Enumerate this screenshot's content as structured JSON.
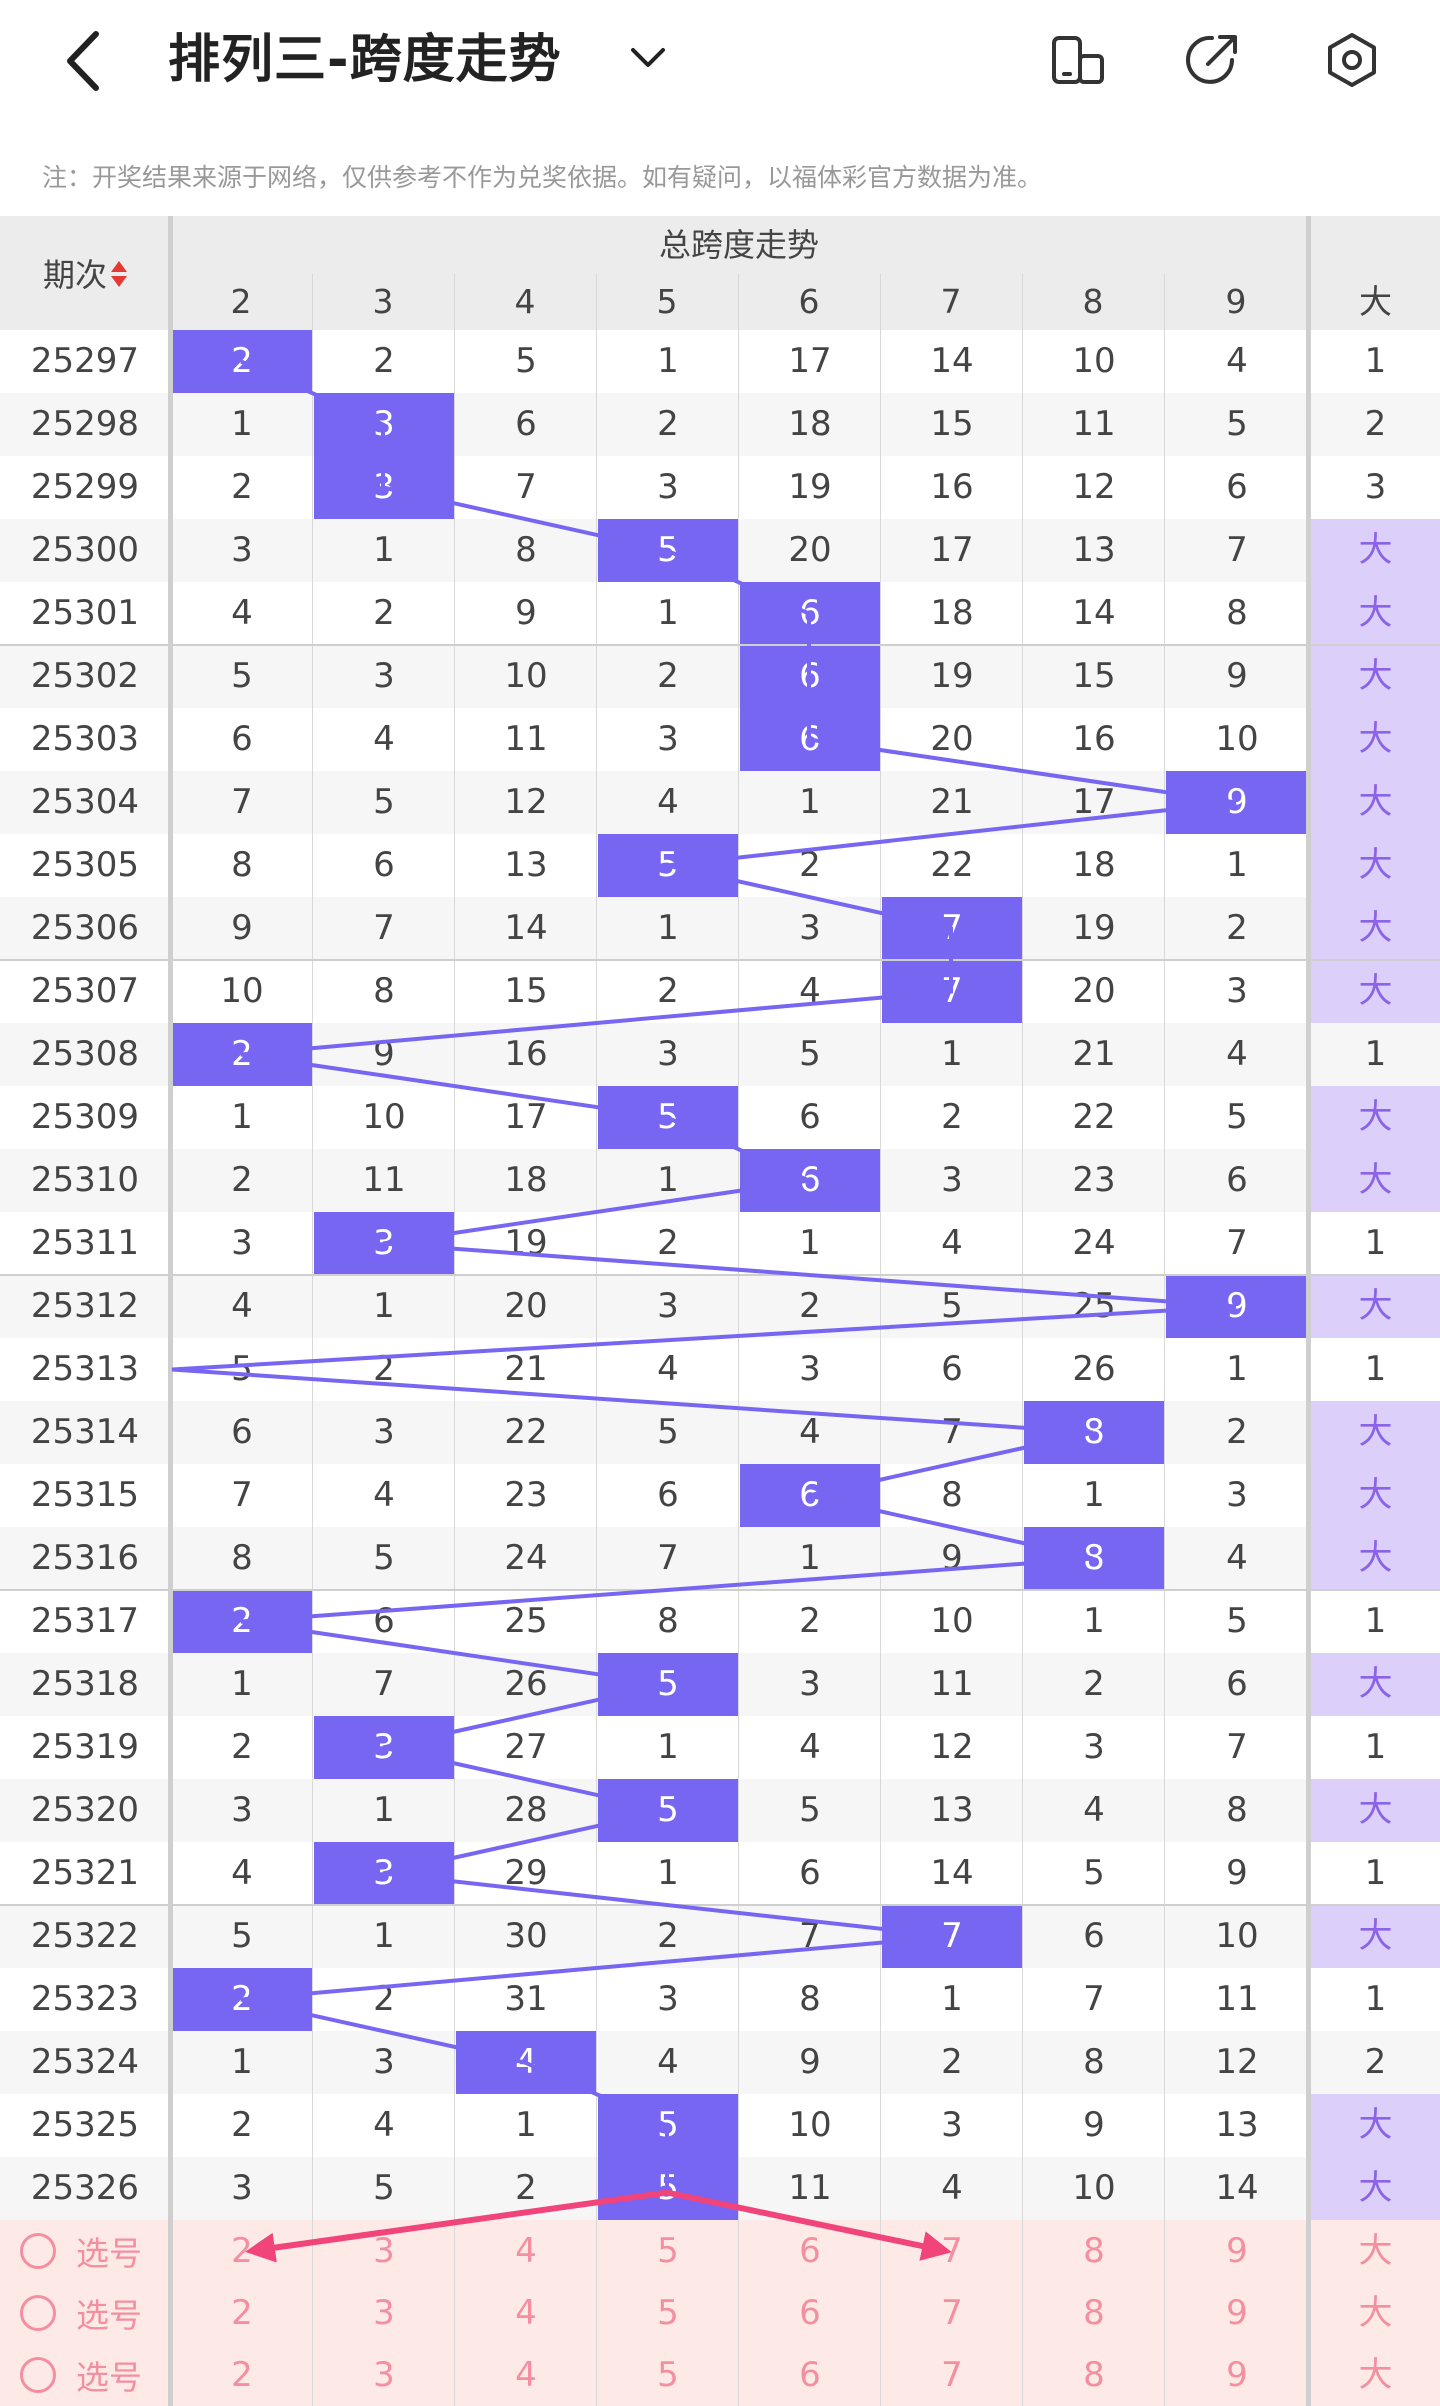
{
  "header": {
    "title": "排列三-跨度走势",
    "back_icon": "chevron-left-icon",
    "dropdown_icon": "chevron-down-icon",
    "icons": [
      "phone-rotate-icon",
      "share-icon",
      "settings-icon"
    ]
  },
  "notice": "注：开奖结果来源于网络，仅供参考不作为兑奖依据。如有疑问，以福体彩官方数据为准。",
  "table": {
    "issue_header": "期次",
    "group_title": "总跨度走势",
    "columns": [
      "2",
      "3",
      "4",
      "5",
      "6",
      "7",
      "8",
      "9"
    ],
    "extra_column": "大",
    "rows": [
      {
        "issue": "25297",
        "vals": [
          "2",
          "2",
          "5",
          "1",
          "17",
          "14",
          "10",
          "4"
        ],
        "hit": 0,
        "extra": "1"
      },
      {
        "issue": "25298",
        "vals": [
          "1",
          "3",
          "6",
          "2",
          "18",
          "15",
          "11",
          "5"
        ],
        "hit": 1,
        "extra": "2"
      },
      {
        "issue": "25299",
        "vals": [
          "2",
          "3",
          "7",
          "3",
          "19",
          "16",
          "12",
          "6"
        ],
        "hit": 1,
        "extra": "3"
      },
      {
        "issue": "25300",
        "vals": [
          "3",
          "1",
          "8",
          "5",
          "20",
          "17",
          "13",
          "7"
        ],
        "hit": 3,
        "extra": "大"
      },
      {
        "issue": "25301",
        "vals": [
          "4",
          "2",
          "9",
          "1",
          "6",
          "18",
          "14",
          "8"
        ],
        "hit": 4,
        "extra": "大"
      },
      {
        "issue": "25302",
        "vals": [
          "5",
          "3",
          "10",
          "2",
          "6",
          "19",
          "15",
          "9"
        ],
        "hit": 4,
        "extra": "大"
      },
      {
        "issue": "25303",
        "vals": [
          "6",
          "4",
          "11",
          "3",
          "6",
          "20",
          "16",
          "10"
        ],
        "hit": 4,
        "extra": "大"
      },
      {
        "issue": "25304",
        "vals": [
          "7",
          "5",
          "12",
          "4",
          "1",
          "21",
          "17",
          "9"
        ],
        "hit": 7,
        "extra": "大"
      },
      {
        "issue": "25305",
        "vals": [
          "8",
          "6",
          "13",
          "5",
          "2",
          "22",
          "18",
          "1"
        ],
        "hit": 3,
        "extra": "大"
      },
      {
        "issue": "25306",
        "vals": [
          "9",
          "7",
          "14",
          "1",
          "3",
          "7",
          "19",
          "2"
        ],
        "hit": 5,
        "extra": "大"
      },
      {
        "issue": "25307",
        "vals": [
          "10",
          "8",
          "15",
          "2",
          "4",
          "7",
          "20",
          "3"
        ],
        "hit": 5,
        "extra": "大"
      },
      {
        "issue": "25308",
        "vals": [
          "2",
          "9",
          "16",
          "3",
          "5",
          "1",
          "21",
          "4"
        ],
        "hit": 0,
        "extra": "1"
      },
      {
        "issue": "25309",
        "vals": [
          "1",
          "10",
          "17",
          "5",
          "6",
          "2",
          "22",
          "5"
        ],
        "hit": 3,
        "extra": "大"
      },
      {
        "issue": "25310",
        "vals": [
          "2",
          "11",
          "18",
          "1",
          "6",
          "3",
          "23",
          "6"
        ],
        "hit": 4,
        "extra": "大"
      },
      {
        "issue": "25311",
        "vals": [
          "3",
          "3",
          "19",
          "2",
          "1",
          "4",
          "24",
          "7"
        ],
        "hit": 1,
        "extra": "1"
      },
      {
        "issue": "25312",
        "vals": [
          "4",
          "1",
          "20",
          "3",
          "2",
          "5",
          "25",
          "9"
        ],
        "hit": 7,
        "extra": "大"
      },
      {
        "issue": "25313",
        "vals": [
          "5",
          "2",
          "21",
          "4",
          "3",
          "6",
          "26",
          "1"
        ],
        "hit": -1,
        "extra": "1"
      },
      {
        "issue": "25314",
        "vals": [
          "6",
          "3",
          "22",
          "5",
          "4",
          "7",
          "8",
          "2"
        ],
        "hit": 6,
        "extra": "大"
      },
      {
        "issue": "25315",
        "vals": [
          "7",
          "4",
          "23",
          "6",
          "6",
          "8",
          "1",
          "3"
        ],
        "hit": 4,
        "extra": "大"
      },
      {
        "issue": "25316",
        "vals": [
          "8",
          "5",
          "24",
          "7",
          "1",
          "9",
          "8",
          "4"
        ],
        "hit": 6,
        "extra": "大"
      },
      {
        "issue": "25317",
        "vals": [
          "2",
          "6",
          "25",
          "8",
          "2",
          "10",
          "1",
          "5"
        ],
        "hit": 0,
        "extra": "1"
      },
      {
        "issue": "25318",
        "vals": [
          "1",
          "7",
          "26",
          "5",
          "3",
          "11",
          "2",
          "6"
        ],
        "hit": 3,
        "extra": "大"
      },
      {
        "issue": "25319",
        "vals": [
          "2",
          "3",
          "27",
          "1",
          "4",
          "12",
          "3",
          "7"
        ],
        "hit": 1,
        "extra": "1"
      },
      {
        "issue": "25320",
        "vals": [
          "3",
          "1",
          "28",
          "5",
          "5",
          "13",
          "4",
          "8"
        ],
        "hit": 3,
        "extra": "大"
      },
      {
        "issue": "25321",
        "vals": [
          "4",
          "3",
          "29",
          "1",
          "6",
          "14",
          "5",
          "9"
        ],
        "hit": 1,
        "extra": "1"
      },
      {
        "issue": "25322",
        "vals": [
          "5",
          "1",
          "30",
          "2",
          "7",
          "7",
          "6",
          "10"
        ],
        "hit": 5,
        "extra": "大"
      },
      {
        "issue": "25323",
        "vals": [
          "2",
          "2",
          "31",
          "3",
          "8",
          "1",
          "7",
          "11"
        ],
        "hit": 0,
        "extra": "1"
      },
      {
        "issue": "25324",
        "vals": [
          "1",
          "3",
          "4",
          "4",
          "9",
          "2",
          "8",
          "12"
        ],
        "hit": 2,
        "extra": "2"
      },
      {
        "issue": "25325",
        "vals": [
          "2",
          "4",
          "1",
          "5",
          "10",
          "3",
          "9",
          "13"
        ],
        "hit": 3,
        "extra": "大"
      },
      {
        "issue": "25326",
        "vals": [
          "3",
          "5",
          "2",
          "5",
          "11",
          "4",
          "10",
          "14"
        ],
        "hit": 3,
        "extra": "大"
      }
    ],
    "select_rows": [
      {
        "label": "选号",
        "vals": [
          "2",
          "3",
          "4",
          "5",
          "6",
          "7",
          "8",
          "9"
        ],
        "extra": "大"
      },
      {
        "label": "选号",
        "vals": [
          "2",
          "3",
          "4",
          "5",
          "6",
          "7",
          "8",
          "9"
        ],
        "extra": "大"
      },
      {
        "label": "选号",
        "vals": [
          "2",
          "3",
          "4",
          "5",
          "6",
          "7",
          "8",
          "9"
        ],
        "extra": "大"
      }
    ]
  },
  "colors": {
    "hit": "#7766f2",
    "trend_line": "#7766f2",
    "big_bg": "#dccffa",
    "big_text": "#8b63e8",
    "select_bg": "#fdeae6",
    "select_text": "#f48fa1",
    "annotation_arrow": "#f0447a"
  }
}
